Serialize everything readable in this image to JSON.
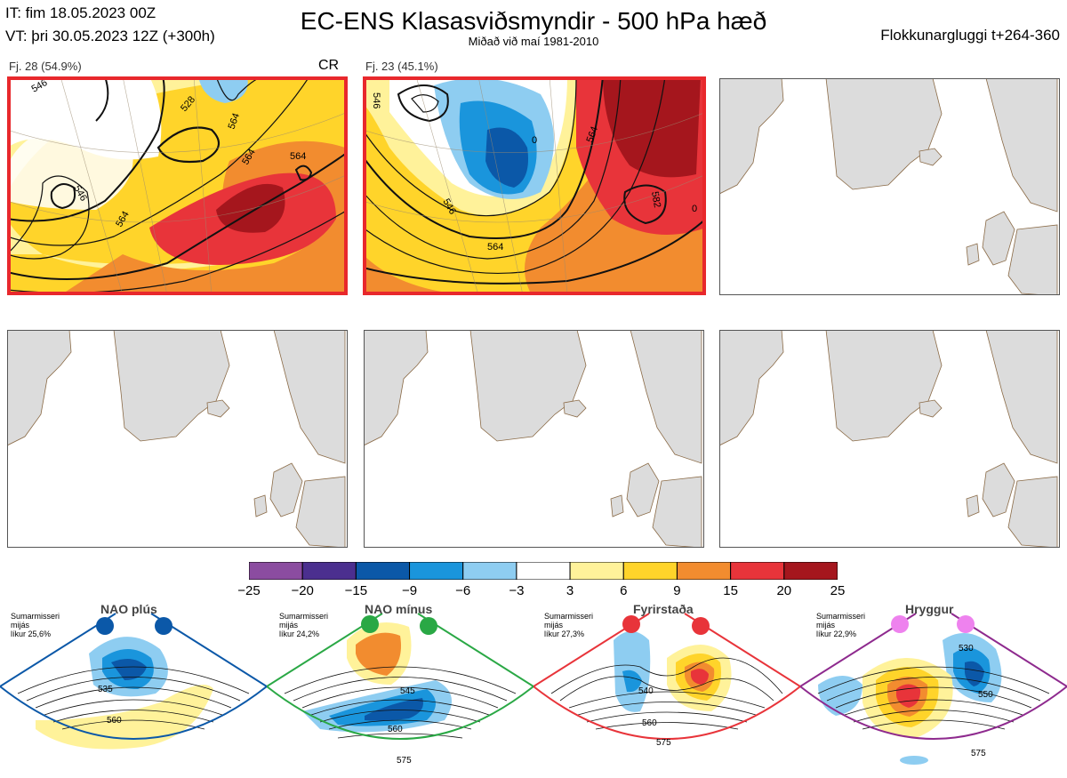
{
  "header": {
    "it_line": "IT: fim 18.05.2023 00Z",
    "vt_line": "VT: þri 30.05.2023 12Z  (+300h)",
    "title": "EC-ENS Klasasviðsmyndir - 500 hPa hæð",
    "subtitle": "Miðað við maí 1981-2010",
    "window": "Flokkunargluggi t+264-360"
  },
  "panels": [
    {
      "label": "Fj. 28 (54.9%)",
      "tag": "CR",
      "contours": [
        "546",
        "546",
        "564",
        "564",
        "564",
        "564",
        "528"
      ]
    },
    {
      "label": "Fj. 23 (45.1%)",
      "tag": "",
      "contours": [
        "546",
        "564",
        "546",
        "582",
        "564",
        "0",
        "0"
      ]
    }
  ],
  "colorbar": {
    "ticks": [
      "−25",
      "−20",
      "−15",
      "−9",
      "−6",
      "−3",
      "3",
      "6",
      "9",
      "15",
      "20",
      "25"
    ],
    "colors": [
      "#8b4ca0",
      "#4b2f8f",
      "#0b58a8",
      "#1a95dc",
      "#8ecdf1",
      "#ffffff",
      "#fff29a",
      "#ffd42a",
      "#f28c2f",
      "#e8343a",
      "#a5161d"
    ]
  },
  "regimes": [
    {
      "name": "NAO plús",
      "info": [
        "Sumarmisseri",
        "mijás",
        "líkur 25,6%"
      ],
      "frame_color": "#0b58a8",
      "dot_color": "#0b58a8",
      "contours": [
        "535",
        "560"
      ]
    },
    {
      "name": "NAO mínus",
      "info": [
        "Sumarmisseri",
        "mijás",
        "líkur 24,2%"
      ],
      "frame_color": "#2aa845",
      "dot_color": "#2aa845",
      "contours": [
        "545",
        "560",
        "575"
      ]
    },
    {
      "name": "Fyrirstaða",
      "info": [
        "Sumarmisseri",
        "mijás",
        "líkur 27,3%"
      ],
      "frame_color": "#e8343a",
      "dot_color": "#e8343a",
      "contours": [
        "540",
        "560",
        "575"
      ]
    },
    {
      "name": "Hryggur",
      "info": [
        "Sumarmisseri",
        "mijás",
        "líkur 22,9%"
      ],
      "frame_color": "#8e2a8e",
      "dot_color": "#ee82ee",
      "contours": [
        "530",
        "550",
        "575"
      ]
    }
  ],
  "chart_data": {
    "type": "heatmap",
    "title": "EC-ENS Klasasviðsmyndir - 500 hPa hæð",
    "clusters": [
      {
        "name": "Fj. 28",
        "members": 28,
        "percent": 54.9,
        "tag": "CR"
      },
      {
        "name": "Fj. 23",
        "members": 23,
        "percent": 45.1
      }
    ],
    "colorbar_levels": [
      -25,
      -20,
      -15,
      -9,
      -6,
      -3,
      3,
      6,
      9,
      15,
      20,
      25
    ],
    "regimes": [
      {
        "name": "NAO plús",
        "probability_percent": 25.6
      },
      {
        "name": "NAO mínus",
        "probability_percent": 24.2
      },
      {
        "name": "Fyrirstaða",
        "probability_percent": 27.3
      },
      {
        "name": "Hryggur",
        "probability_percent": 22.9
      }
    ]
  }
}
